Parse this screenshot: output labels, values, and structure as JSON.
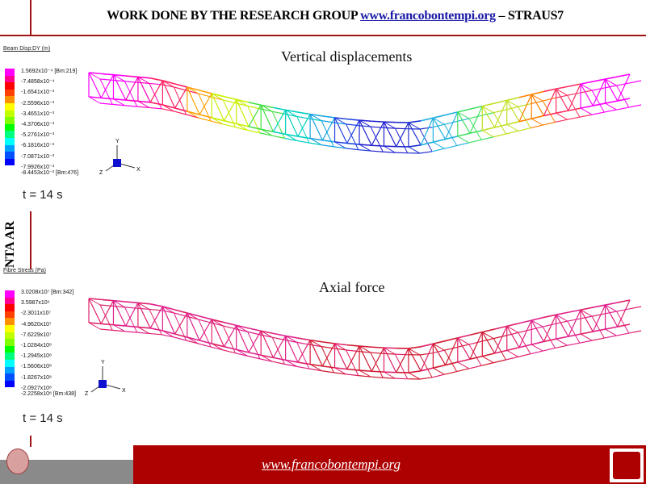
{
  "header": {
    "prefix": "WORK DONE BY THE RESEARCH GROUP ",
    "link": "www.francobontempi.org",
    "suffix": " – STRAUS7"
  },
  "side_text": "NTA AR",
  "panels": [
    {
      "title": "Vertical displacements",
      "legend_title": "Beam Disp:DY  (m)",
      "time": "t =  14 s",
      "labels": [
        "1.5692x10⁻⁴ [Bm:219]",
        "-7.4858x10⁻⁴",
        "-1.6541x10⁻³",
        "-2.5596x10⁻³",
        "-3.4651x10⁻³",
        "-4.3706x10⁻³",
        "-5.2761x10⁻³",
        "-6.1816x10⁻³",
        "-7.0871x10⁻³",
        "-7.9926x10⁻³",
        "-8.4453x10⁻³ [Bm:476]"
      ],
      "colors": [
        "#ff00ff",
        "#ff0090",
        "#ff0000",
        "#ff4000",
        "#ff9000",
        "#ffff00",
        "#c0ff00",
        "#80ff00",
        "#00ff00",
        "#00ff80",
        "#00ffff",
        "#00a0ff",
        "#0050ff",
        "#0000ff"
      ]
    },
    {
      "title": "Axial force",
      "legend_title": "Fibre Stress  (Pa)",
      "time": "t =  14 s",
      "labels": [
        "3.0208x10⁷ [Bm:342]",
        "3.5987x10⁶",
        "-2.3011x10⁷",
        "-4.9620x10⁷",
        "-7.6229x10⁷",
        "-1.0284x10⁸",
        "-1.2945x10⁸",
        "-1.5606x10⁸",
        "-1.8267x10⁸",
        "-2.0927x10⁸",
        "-2.2258x10⁸ [Bm:438]"
      ],
      "colors": [
        "#ff00ff",
        "#ff0090",
        "#ff0000",
        "#ff4000",
        "#ff9000",
        "#ffff00",
        "#c0ff00",
        "#80ff00",
        "#00ff00",
        "#00ff80",
        "#00ffff",
        "#00a0ff",
        "#0050ff",
        "#0000ff"
      ]
    }
  ],
  "axes": {
    "x": "X",
    "y": "Y",
    "z": "Z"
  },
  "footer": {
    "url": "www.francobontempi.org"
  },
  "colors": {
    "accent": "#ad0000"
  }
}
